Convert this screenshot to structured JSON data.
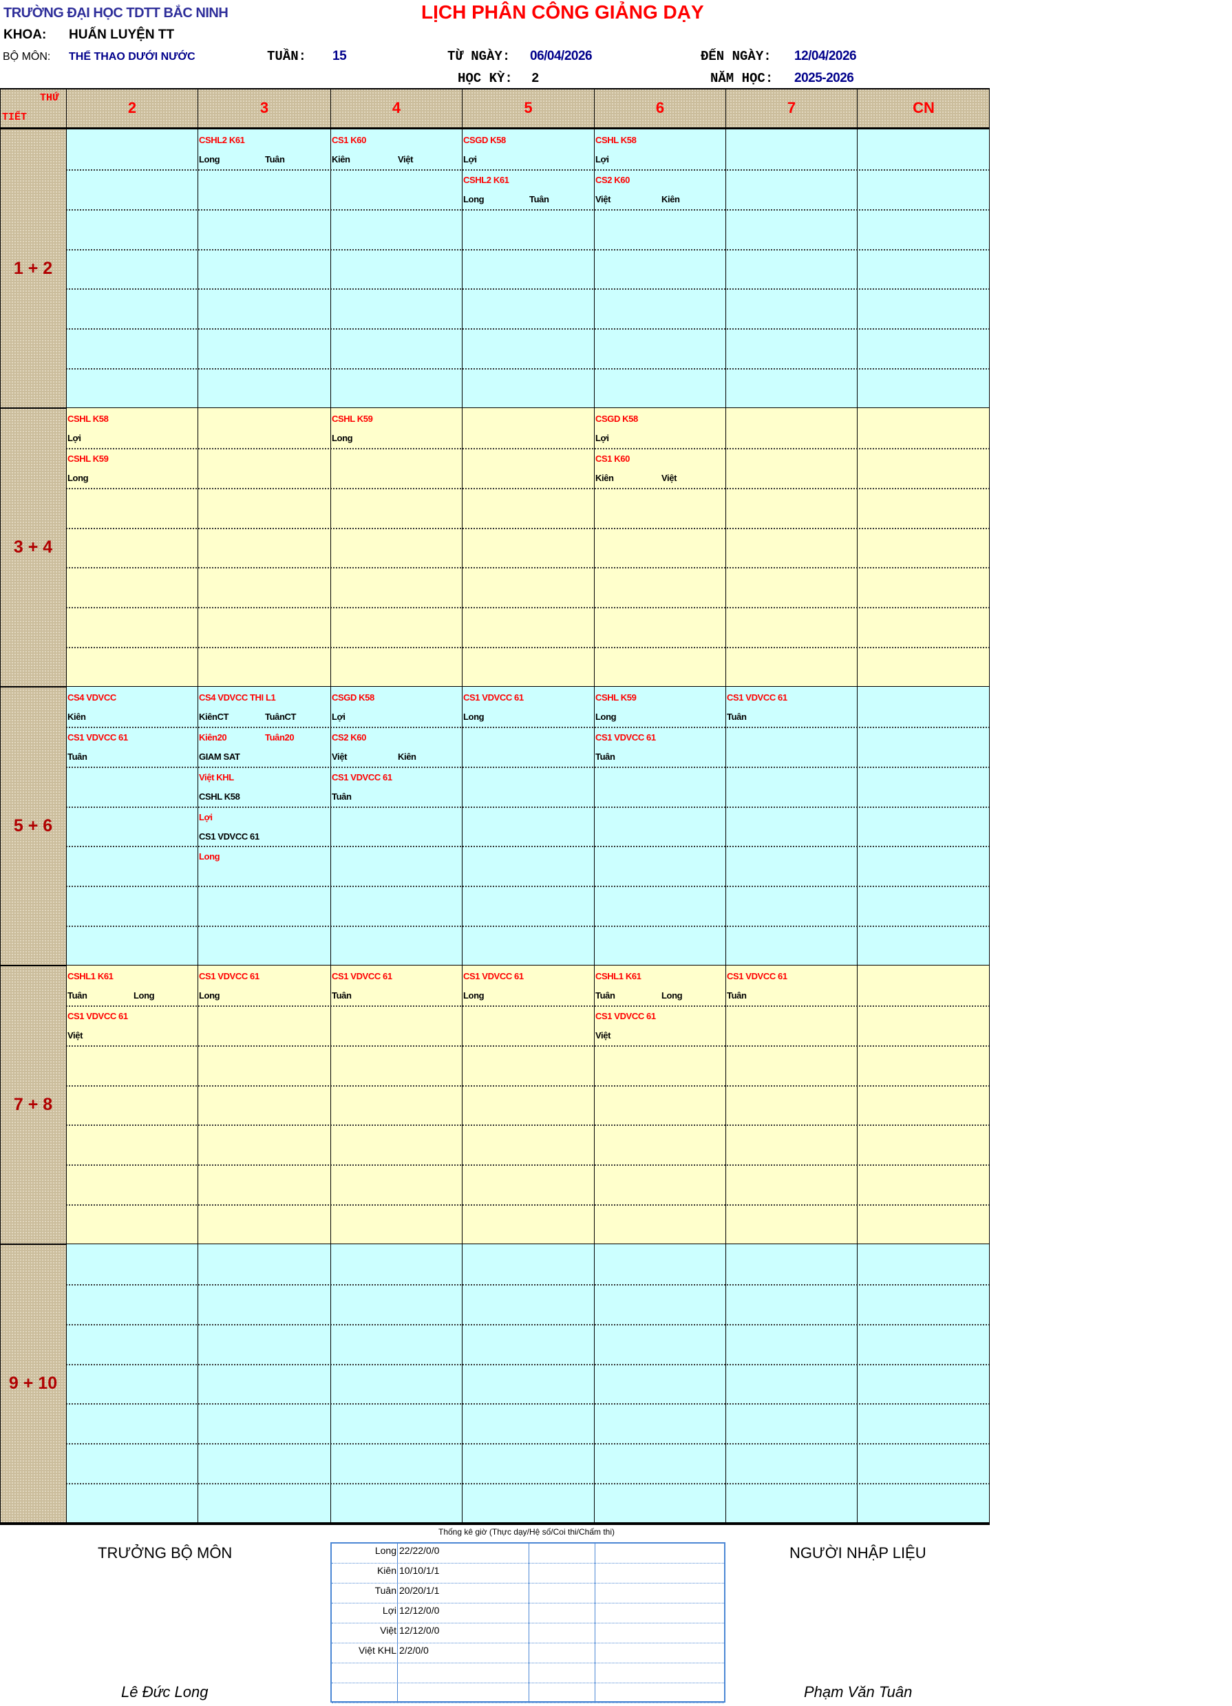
{
  "header": {
    "school": "TRƯỜNG ĐẠI HỌC TDTT BẮC NINH",
    "title": "LỊCH PHÂN CÔNG GIẢNG DẠY",
    "faculty_label": "KHOA:",
    "faculty": "HUẤN LUYỆN TT",
    "department_label": "BỘ MÔN:",
    "department": "THỂ THAO DƯỚI NƯỚC",
    "week_label": "TUẦN:",
    "week": "15",
    "from_label": "TỪ NGÀY:",
    "from_date": "06/04/2026",
    "to_label": "ĐẾN NGÀY:",
    "to_date": "12/04/2026",
    "semester_label": "HỌC KỲ:",
    "semester": "2",
    "year_label": "NĂM HỌC:",
    "year": "2025-2026"
  },
  "grid": {
    "corner_day": "THỨ",
    "corner_period": "TIẾT",
    "days": [
      "2",
      "3",
      "4",
      "5",
      "6",
      "7",
      "CN"
    ],
    "colors": {
      "blue": "#ccffff",
      "yellow": "#ffffcc",
      "class_text": "#ff0000",
      "pattern": "#cbbd9c"
    },
    "periods": [
      {
        "label": "1 + 2",
        "bg": "blue",
        "days": [
          [],
          [
            [
              [
                "CSHL2 K61"
              ],
              [
                "Long",
                "Tuân"
              ]
            ]
          ],
          [
            [
              [
                "CS1 K60"
              ],
              [
                "Kiên",
                "Việt"
              ]
            ]
          ],
          [
            [
              [
                "CSGD K58"
              ],
              [
                "Lợi"
              ]
            ],
            [
              [
                "CSHL2 K61"
              ],
              [
                "Long",
                "Tuân"
              ]
            ]
          ],
          [
            [
              [
                "CSHL K58"
              ],
              [
                "Lợi"
              ]
            ],
            [
              [
                "CS2 K60"
              ],
              [
                "Việt",
                "Kiên"
              ]
            ]
          ],
          [],
          []
        ]
      },
      {
        "label": "3 + 4",
        "bg": "yellow",
        "days": [
          [
            [
              [
                "CSHL K58"
              ],
              [
                "Lợi"
              ]
            ],
            [
              [
                "CSHL K59"
              ],
              [
                "Long"
              ]
            ]
          ],
          [],
          [
            [
              [
                "CSHL K59"
              ],
              [
                "Long"
              ]
            ]
          ],
          [],
          [
            [
              [
                "CSGD K58"
              ],
              [
                "Lợi"
              ]
            ],
            [
              [
                "CS1 K60"
              ],
              [
                "Kiên",
                "Việt"
              ]
            ]
          ],
          [],
          []
        ]
      },
      {
        "label": "5 + 6",
        "bg": "blue",
        "days": [
          [
            [
              [
                "CS4 VDVCC"
              ],
              [
                "Kiên"
              ]
            ],
            [
              [
                "CS1 VDVCC 61"
              ],
              [
                "Tuân"
              ]
            ]
          ],
          [
            [
              [
                "CS4 VDVCC THI L1"
              ],
              [
                "KiênCT",
                "TuânCT"
              ]
            ],
            [
              [
                "Kiên20",
                "Tuân20"
              ],
              [
                "GIAM SAT"
              ]
            ],
            [
              [
                "Việt KHL"
              ],
              [
                "CSHL K58"
              ]
            ],
            [
              [
                "Lợi"
              ],
              [
                "CS1 VDVCC 61"
              ]
            ],
            [
              [
                "Long"
              ],
              []
            ]
          ],
          [
            [
              [
                "CSGD K58"
              ],
              [
                "Lợi"
              ]
            ],
            [
              [
                "CS2 K60"
              ],
              [
                "Việt",
                "Kiên"
              ]
            ],
            [
              [
                "CS1 VDVCC 61"
              ],
              [
                "Tuân"
              ]
            ]
          ],
          [
            [
              [
                "CS1 VDVCC 61"
              ],
              [
                "Long"
              ]
            ]
          ],
          [
            [
              [
                "CSHL K59"
              ],
              [
                "Long"
              ]
            ],
            [
              [
                "CS1 VDVCC 61"
              ],
              [
                "Tuân"
              ]
            ]
          ],
          [
            [
              [
                "CS1 VDVCC 61"
              ],
              [
                "Tuân"
              ]
            ]
          ],
          []
        ]
      },
      {
        "label": "7 + 8",
        "bg": "yellow",
        "days": [
          [
            [
              [
                "CSHL1  K61"
              ],
              [
                "Tuân",
                "Long"
              ]
            ],
            [
              [
                "CS1 VDVCC 61"
              ],
              [
                "Việt"
              ]
            ]
          ],
          [
            [
              [
                "CS1 VDVCC 61"
              ],
              [
                "Long"
              ]
            ]
          ],
          [
            [
              [
                "CS1 VDVCC 61"
              ],
              [
                "Tuân"
              ]
            ]
          ],
          [
            [
              [
                "CS1 VDVCC 61"
              ],
              [
                "Long"
              ]
            ]
          ],
          [
            [
              [
                "CSHL1  K61"
              ],
              [
                "Tuân",
                "Long"
              ]
            ],
            [
              [
                "CS1 VDVCC 61"
              ],
              [
                "Việt"
              ]
            ]
          ],
          [
            [
              [
                "CS1 VDVCC 61"
              ],
              [
                "Tuân"
              ]
            ]
          ],
          []
        ]
      },
      {
        "label": "9 + 10",
        "bg": "blue",
        "days": [
          [],
          [],
          [],
          [],
          [],
          [],
          []
        ]
      }
    ]
  },
  "footer": {
    "head_title": "TRƯỞNG BỘ MÔN",
    "head_name": "Lê Đức Long",
    "entry_title": "NGƯỜI NHẬP LIỆU",
    "entry_name": "Phạm Văn Tuân",
    "stats_title": "Thống kê giờ (Thực dạy/Hệ số/Coi thi/Chấm thi)",
    "stats": [
      {
        "name": "Long",
        "value": "22/22/0/0"
      },
      {
        "name": "Kiên",
        "value": "10/10/1/1"
      },
      {
        "name": "Tuân",
        "value": "20/20/1/1"
      },
      {
        "name": "Lợi",
        "value": "12/12/0/0"
      },
      {
        "name": "Việt",
        "value": "12/12/0/0"
      },
      {
        "name": "Việt KHL",
        "value": "2/2/0/0"
      },
      {
        "name": "",
        "value": ""
      },
      {
        "name": "",
        "value": ""
      }
    ]
  }
}
